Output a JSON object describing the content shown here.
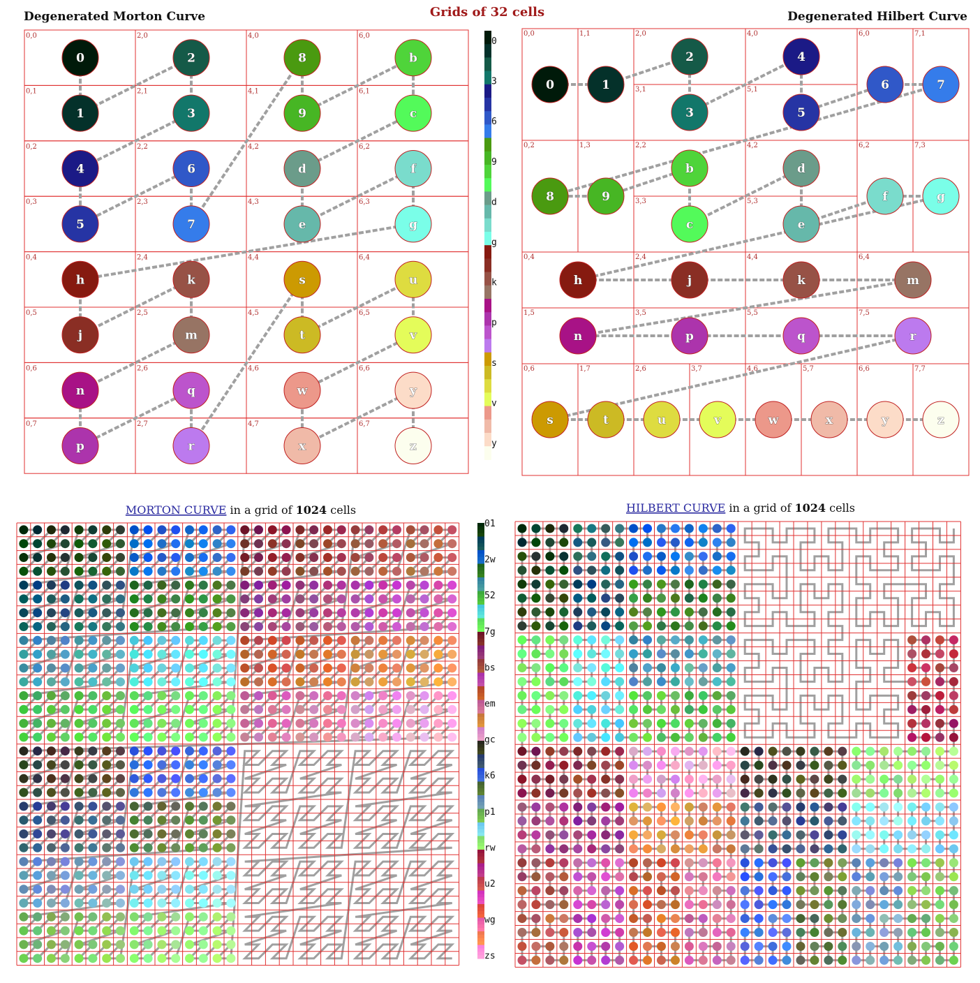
{
  "header": {
    "center_title": "Grids of 32 cells",
    "left_title": "Degenerated Morton Curve",
    "right_title": "Degenerated Hilbert Curve"
  },
  "captions": {
    "morton_link": "MORTON CURVE",
    "hilbert_link": "HILBERT CURVE",
    "middle": " in a grid of ",
    "count": "1024",
    "suffix": " cells"
  },
  "colors": {
    "grid_line": "#e03030",
    "curve": "#a0a0a0",
    "title_red": "#a01a1a"
  },
  "alphabet": "0123456789bcdefghjkmnpqrstuvwxyz",
  "palette32": [
    "#001a0a",
    "#04312a",
    "#155a48",
    "#12776a",
    "#1b1a86",
    "#2634a4",
    "#3058c8",
    "#357cea",
    "#4a9a10",
    "#47b624",
    "#4fd43a",
    "#53fa5a",
    "#6b9c8a",
    "#66b8aa",
    "#7adccc",
    "#7afee8",
    "#861a10",
    "#8a2e24",
    "#975246",
    "#977464",
    "#a81286",
    "#ac34ac",
    "#bc54cc",
    "#bc7aee",
    "#cc9a02",
    "#ccba24",
    "#dedc40",
    "#e4fc5a",
    "#ec988a",
    "#f0baa8",
    "#fcdcc8",
    "#fcfeee"
  ],
  "small_morton": {
    "labels": [
      [
        "0",
        "2",
        "8",
        "b"
      ],
      [
        "1",
        "3",
        "9",
        "c"
      ],
      [
        "4",
        "6",
        "d",
        "f"
      ],
      [
        "5",
        "7",
        "e",
        "g"
      ],
      [
        "h",
        "k",
        "s",
        "u"
      ],
      [
        "j",
        "m",
        "t",
        "v"
      ],
      [
        "n",
        "q",
        "w",
        "y"
      ],
      [
        "p",
        "r",
        "x",
        "z"
      ]
    ],
    "coords": [
      [
        "0,0",
        "2,0",
        "4,0",
        "6,0"
      ],
      [
        "0,1",
        "2,1",
        "4,1",
        "6,1"
      ],
      [
        "0,2",
        "2,2",
        "4,2",
        "6,2"
      ],
      [
        "0,3",
        "2,3",
        "4,3",
        "6,3"
      ],
      [
        "0,4",
        "2,4",
        "4,4",
        "6,4"
      ],
      [
        "0,5",
        "2,5",
        "4,5",
        "6,5"
      ],
      [
        "0,6",
        "2,6",
        "4,6",
        "6,6"
      ],
      [
        "0,7",
        "2,7",
        "4,7",
        "6,7"
      ]
    ]
  },
  "small_hilbert": {
    "coords": [
      "0,0",
      "1,1",
      "2,0",
      "3,1",
      "4,0",
      "5,1",
      "6,0",
      "7,1",
      "0,2",
      "1,3",
      "2,2",
      "3,3",
      "4,2",
      "5,3",
      "6,2",
      "7,3",
      "0,4",
      "2,4",
      "4,4",
      "6,4",
      "1,5",
      "3,5",
      "5,5",
      "7,5",
      "0,6",
      "1,7",
      "2,6",
      "3,7",
      "4,6",
      "5,7",
      "6,6",
      "7,7"
    ],
    "order": [
      "0",
      "1",
      "2",
      "3",
      "4",
      "5",
      "6",
      "7",
      "8",
      "9",
      "b",
      "c",
      "d",
      "e",
      "f",
      "g",
      "h",
      "j",
      "k",
      "m",
      "n",
      "p",
      "q",
      "r",
      "s",
      "t",
      "u",
      "v",
      "w",
      "x",
      "y",
      "z"
    ]
  },
  "legend_small": [
    "0",
    "3",
    "6",
    "9",
    "d",
    "g",
    "k",
    "p",
    "s",
    "v",
    "y"
  ],
  "legend_large": [
    "01",
    "2w",
    "52",
    "7g",
    "bs",
    "em",
    "gc",
    "k6",
    "p1",
    "rw",
    "u2",
    "wg",
    "zs"
  ]
}
